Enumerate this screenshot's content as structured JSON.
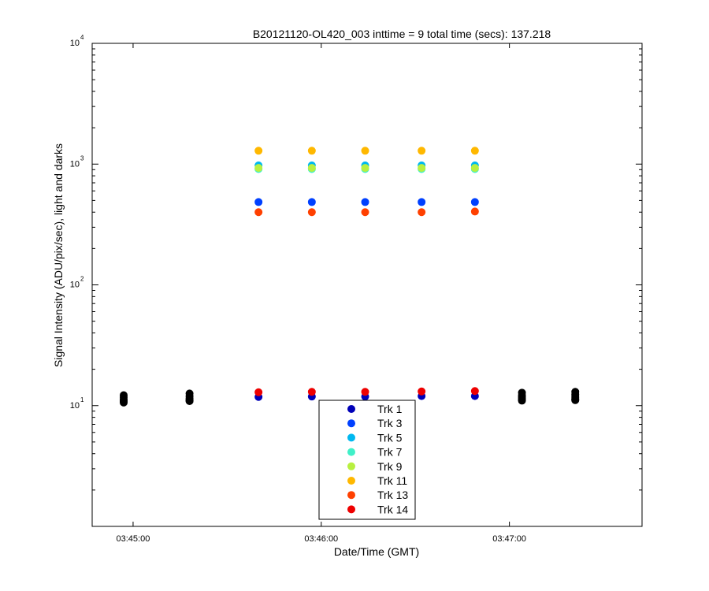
{
  "chart_data": {
    "type": "scatter",
    "title": "B20121120-OL420_003 inttime = 9 total time (secs): 137.218",
    "xlabel": "Date/Time (GMT)",
    "ylabel": "Signal Intensity (ADU/pix/sec), light and darks",
    "x_time_range": [
      "03:44:57",
      "03:47:33"
    ],
    "x_ticks": [
      "03:45:00",
      "03:46:00",
      "03:47:00"
    ],
    "y_scale": "log",
    "ylim": [
      1,
      10000
    ],
    "y_ticks": [
      {
        "base": "10",
        "exp": "1",
        "value": 10
      },
      {
        "base": "10",
        "exp": "2",
        "value": 100
      },
      {
        "base": "10",
        "exp": "3",
        "value": 1000
      },
      {
        "base": "10",
        "exp": "4",
        "value": 10000
      }
    ],
    "grid": false,
    "legend_position": "bottom-center",
    "series": [
      {
        "name": "Trk 1",
        "color": "#0000b8",
        "x": [
          "03:45:40",
          "03:45:57",
          "03:46:14",
          "03:46:32",
          "03:46:49"
        ],
        "y": [
          11.8,
          11.9,
          11.9,
          12.0,
          12.0
        ]
      },
      {
        "name": "Trk 3",
        "color": "#0040ff",
        "x": [
          "03:45:40",
          "03:45:57",
          "03:46:14",
          "03:46:32",
          "03:46:49"
        ],
        "y": [
          485,
          485,
          485,
          485,
          485
        ]
      },
      {
        "name": "Trk 5",
        "color": "#00b8f0",
        "x": [
          "03:45:40",
          "03:45:57",
          "03:46:14",
          "03:46:32",
          "03:46:49"
        ],
        "y": [
          975,
          975,
          975,
          975,
          975
        ]
      },
      {
        "name": "Trk 7",
        "color": "#40f0c8",
        "x": [
          "03:45:40",
          "03:45:57",
          "03:46:14",
          "03:46:32",
          "03:46:49"
        ],
        "y": [
          910,
          910,
          910,
          910,
          910
        ]
      },
      {
        "name": "Trk 9",
        "color": "#b8f040",
        "x": [
          "03:45:40",
          "03:45:57",
          "03:46:14",
          "03:46:32",
          "03:46:49"
        ],
        "y": [
          930,
          930,
          930,
          930,
          930
        ]
      },
      {
        "name": "Trk 11",
        "color": "#ffb800",
        "x": [
          "03:45:40",
          "03:45:57",
          "03:46:14",
          "03:46:32",
          "03:46:49"
        ],
        "y": [
          1290,
          1290,
          1290,
          1290,
          1290
        ]
      },
      {
        "name": "Trk 13",
        "color": "#ff4000",
        "x": [
          "03:45:40",
          "03:45:57",
          "03:46:14",
          "03:46:32",
          "03:46:49"
        ],
        "y": [
          400,
          400,
          400,
          400,
          405
        ]
      },
      {
        "name": "Trk 14",
        "color": "#ee0000",
        "x": [
          "03:45:40",
          "03:45:57",
          "03:46:14",
          "03:46:32",
          "03:46:49"
        ],
        "y": [
          12.9,
          13.0,
          13.0,
          13.1,
          13.2
        ]
      }
    ],
    "dark_series": {
      "color": "#000000",
      "x": [
        "03:44:57",
        "03:44:57",
        "03:44:57",
        "03:44:57",
        "03:44:57",
        "03:44:57",
        "03:45:18",
        "03:45:18",
        "03:45:18",
        "03:45:18",
        "03:45:18",
        "03:45:18",
        "03:47:04",
        "03:47:04",
        "03:47:04",
        "03:47:04",
        "03:47:04",
        "03:47:04",
        "03:47:21",
        "03:47:21",
        "03:47:21",
        "03:47:21",
        "03:47:21",
        "03:47:21"
      ],
      "y": [
        12.2,
        11.7,
        11.3,
        11.0,
        10.8,
        10.6,
        12.6,
        12.0,
        11.5,
        11.2,
        11.0,
        10.9,
        12.8,
        12.2,
        11.8,
        11.5,
        11.2,
        11.0,
        13.0,
        12.4,
        12.0,
        11.6,
        11.3,
        11.1
      ]
    }
  }
}
